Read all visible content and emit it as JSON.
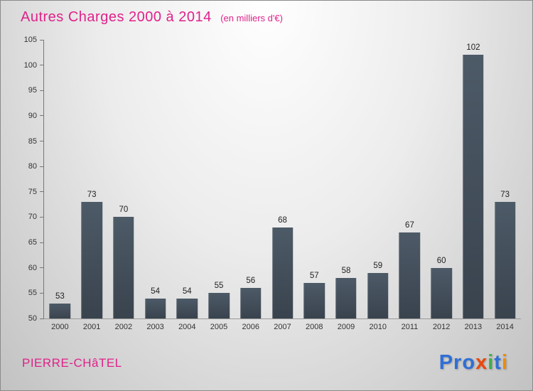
{
  "header": {
    "title": "Autres Charges 2000 à 2014",
    "subtitle": "(en milliers d'€)",
    "title_color": "#e0218a"
  },
  "footer": {
    "location": "PIERRE-CHâTEL",
    "brand_letters": [
      [
        "P",
        "#2f6fd6"
      ],
      [
        "r",
        "#2f6fd6"
      ],
      [
        "o",
        "#2f6fd6"
      ],
      [
        "x",
        "#e8490f"
      ],
      [
        "i",
        "#3fae49"
      ],
      [
        "t",
        "#2f6fd6"
      ],
      [
        "i",
        "#f08c00"
      ]
    ]
  },
  "chart_data": {
    "type": "bar",
    "title": "Autres Charges 2000 à 2014",
    "subtitle": "(en milliers d'€)",
    "categories": [
      "2000",
      "2001",
      "2002",
      "2003",
      "2004",
      "2005",
      "2006",
      "2007",
      "2008",
      "2009",
      "2010",
      "2011",
      "2012",
      "2013",
      "2014"
    ],
    "values": [
      53,
      73,
      70,
      54,
      54,
      55,
      56,
      68,
      57,
      58,
      59,
      67,
      60,
      102,
      73
    ],
    "xlabel": "",
    "ylabel": "",
    "ylim": [
      50,
      105
    ],
    "ytick_step": 5,
    "grid": false,
    "legend": false,
    "bar_color_top": "#4d5a67",
    "bar_color_bottom": "#39434e",
    "value_label_color": "#222222",
    "axis_label_color": "#333333"
  }
}
